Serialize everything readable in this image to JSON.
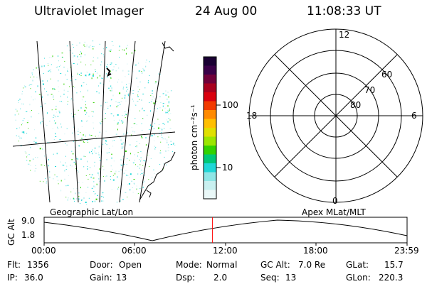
{
  "header": {
    "instrument": "Ultraviolet Imager",
    "date": "24 Aug 00",
    "time": "11:08:33 UT"
  },
  "colorbar": {
    "label": "photon cm⁻²s⁻¹",
    "ticks": [
      "100",
      "10"
    ],
    "colors": [
      "#1a0033",
      "#3a0048",
      "#70003a",
      "#a8001e",
      "#d9000e",
      "#f23a00",
      "#ff8a00",
      "#ffbf00",
      "#e0e000",
      "#9be600",
      "#32d200",
      "#00c878",
      "#20d7d7",
      "#8fe6e6",
      "#c8f0f0",
      "#eaf8f8"
    ]
  },
  "geo_map": {
    "caption": "Geographic Lat/Lon"
  },
  "polar": {
    "caption": "Apex MLat/MLT",
    "mlt_labels": {
      "top": "12",
      "bottom": "0",
      "left": "18",
      "right": "6"
    },
    "lat_labels": [
      "60",
      "70",
      "80"
    ]
  },
  "timeline": {
    "ylabel": "GC Alt",
    "y_ticks": [
      "9.0",
      "1.8"
    ],
    "x_ticks": [
      "00:00",
      "06:00",
      "12:00",
      "18:00",
      "23:59"
    ],
    "current_time_fraction": 0.464,
    "marker_color": "#ff0000"
  },
  "info": {
    "flt_label": "Flt:",
    "flt_value": "1356",
    "ip_label": "IP:",
    "ip_value": "36.0",
    "door_label": "Door:",
    "door_value": "Open",
    "gain_label": "Gain:",
    "gain_value": "13",
    "mode_label": "Mode:",
    "mode_value": "Normal",
    "dsp_label": "Dsp:",
    "dsp_value": "2.0",
    "gcalt_label": "GC Alt:",
    "gcalt_value": "7.0 Re",
    "seq_label": "Seq:",
    "seq_value": "13",
    "glat_label": "GLat:",
    "glat_value": "15.7",
    "glon_label": "GLon:",
    "glon_value": "220.3"
  }
}
